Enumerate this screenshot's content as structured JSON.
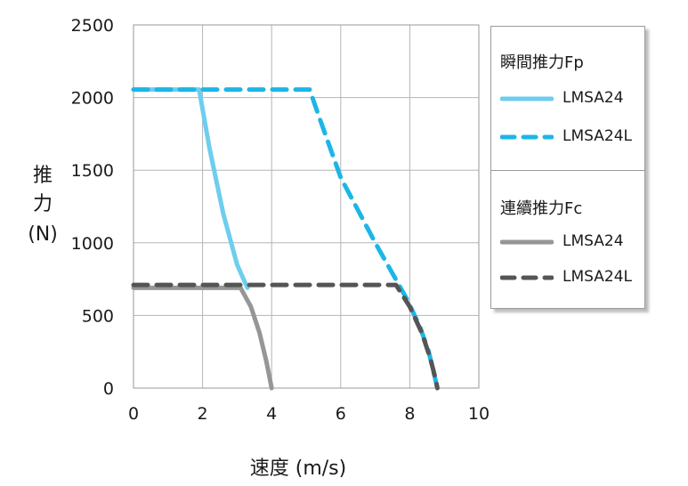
{
  "chart_data": {
    "type": "line",
    "xlabel": "速度 (m/s)",
    "ylabel_chars": [
      "推",
      "力",
      "(N)"
    ],
    "xlim": [
      0,
      10
    ],
    "ylim": [
      0,
      2500
    ],
    "x_ticks": [
      0,
      2,
      4,
      6,
      8,
      10
    ],
    "y_ticks": [
      0,
      500,
      1000,
      1500,
      2000,
      2500
    ],
    "grid": true,
    "legend_position": "right",
    "legend_groups": [
      {
        "title": "瞬間推力Fp",
        "items": [
          0,
          1
        ]
      },
      {
        "title": "連續推力Fc",
        "items": [
          2,
          3
        ]
      }
    ],
    "series": [
      {
        "name": "LMSA24",
        "color": "#6fcdef",
        "dash": "solid",
        "points": [
          [
            0,
            2055
          ],
          [
            1.9,
            2055
          ],
          [
            2.2,
            1650
          ],
          [
            2.6,
            1200
          ],
          [
            3.0,
            850
          ],
          [
            3.3,
            690
          ]
        ]
      },
      {
        "name": "LMSA24L",
        "color": "#1cb6e6",
        "dash": "dashed",
        "points": [
          [
            0,
            2055
          ],
          [
            5.1,
            2055
          ],
          [
            5.4,
            1850
          ],
          [
            6.0,
            1450
          ],
          [
            7.0,
            1000
          ],
          [
            7.9,
            620
          ],
          [
            8.3,
            420
          ],
          [
            8.55,
            250
          ],
          [
            8.7,
            100
          ],
          [
            8.8,
            0
          ]
        ]
      },
      {
        "name": "LMSA24",
        "color": "#969696",
        "dash": "solid",
        "points": [
          [
            0,
            690
          ],
          [
            3.1,
            690
          ],
          [
            3.4,
            560
          ],
          [
            3.65,
            380
          ],
          [
            3.85,
            180
          ],
          [
            3.95,
            60
          ],
          [
            4.0,
            0
          ]
        ]
      },
      {
        "name": "LMSA24L",
        "color": "#555555",
        "dash": "dashed",
        "points": [
          [
            0,
            710
          ],
          [
            7.6,
            710
          ],
          [
            8.0,
            560
          ],
          [
            8.35,
            380
          ],
          [
            8.6,
            200
          ],
          [
            8.75,
            60
          ],
          [
            8.8,
            0
          ]
        ]
      }
    ]
  }
}
